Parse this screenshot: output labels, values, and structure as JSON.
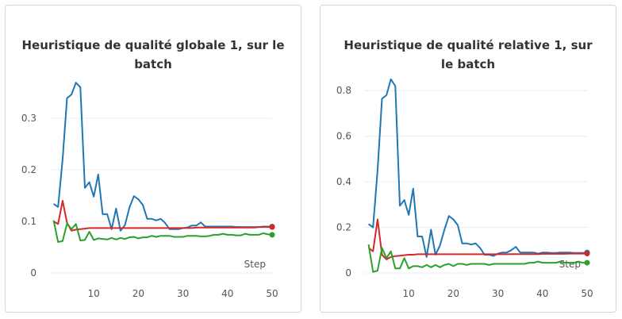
{
  "chart_data": [
    {
      "type": "line",
      "title": "Heuristique de qualité globale 1, sur le batch",
      "xlabel": "Step",
      "xlim": [
        0,
        50
      ],
      "ylim": [
        0,
        0.38
      ],
      "xticks": [
        10,
        20,
        30,
        40,
        50
      ],
      "yticks": [
        0,
        0.1,
        0.2,
        0.3
      ],
      "ytick_labels": [
        "0",
        "0.1",
        "0.2",
        "0.3"
      ],
      "grid": true,
      "series": [
        {
          "color": "#1f77b4",
          "x": [
            1,
            2,
            3,
            4,
            5,
            6,
            7,
            8,
            9,
            10,
            11,
            12,
            13,
            14,
            15,
            16,
            17,
            18,
            19,
            20,
            21,
            22,
            23,
            24,
            25,
            26,
            27,
            28,
            29,
            30,
            31,
            32,
            33,
            34,
            35,
            36,
            37,
            38,
            39,
            40,
            41,
            42,
            43,
            44,
            45,
            46,
            47,
            48,
            49,
            50
          ],
          "y": [
            0.134,
            0.128,
            0.22,
            0.339,
            0.346,
            0.369,
            0.36,
            0.165,
            0.176,
            0.148,
            0.191,
            0.114,
            0.114,
            0.085,
            0.125,
            0.082,
            0.093,
            0.127,
            0.149,
            0.143,
            0.132,
            0.105,
            0.105,
            0.102,
            0.105,
            0.097,
            0.085,
            0.085,
            0.085,
            0.087,
            0.088,
            0.092,
            0.092,
            0.098,
            0.09,
            0.09,
            0.09,
            0.09,
            0.09,
            0.09,
            0.09,
            0.089,
            0.089,
            0.089,
            0.089,
            0.089,
            0.089,
            0.09,
            0.09,
            0.09
          ]
        },
        {
          "color": "#d62728",
          "x": [
            1,
            2,
            3,
            4,
            5,
            6,
            7,
            8,
            9,
            10,
            11,
            12,
            13,
            14,
            15,
            16,
            17,
            18,
            19,
            20,
            21,
            22,
            23,
            24,
            25,
            26,
            27,
            28,
            29,
            30,
            31,
            32,
            33,
            34,
            35,
            36,
            37,
            38,
            39,
            40,
            41,
            42,
            43,
            44,
            45,
            46,
            47,
            48,
            49,
            50
          ],
          "y": [
            0.1,
            0.095,
            0.14,
            0.097,
            0.082,
            0.084,
            0.085,
            0.086,
            0.087,
            0.087,
            0.087,
            0.087,
            0.087,
            0.087,
            0.087,
            0.087,
            0.087,
            0.087,
            0.087,
            0.087,
            0.087,
            0.087,
            0.087,
            0.087,
            0.087,
            0.087,
            0.087,
            0.087,
            0.087,
            0.087,
            0.087,
            0.087,
            0.088,
            0.088,
            0.088,
            0.088,
            0.088,
            0.088,
            0.088,
            0.088,
            0.088,
            0.088,
            0.088,
            0.088,
            0.088,
            0.088,
            0.089,
            0.089,
            0.089,
            0.089
          ]
        },
        {
          "color": "#2ca02c",
          "x": [
            1,
            2,
            3,
            4,
            5,
            6,
            7,
            8,
            9,
            10,
            11,
            12,
            13,
            14,
            15,
            16,
            17,
            18,
            19,
            20,
            21,
            22,
            23,
            24,
            25,
            26,
            27,
            28,
            29,
            30,
            31,
            32,
            33,
            34,
            35,
            36,
            37,
            38,
            39,
            40,
            41,
            42,
            43,
            44,
            45,
            46,
            47,
            48,
            49,
            50
          ],
          "y": [
            0.102,
            0.06,
            0.062,
            0.096,
            0.085,
            0.095,
            0.063,
            0.064,
            0.08,
            0.064,
            0.067,
            0.066,
            0.065,
            0.068,
            0.065,
            0.068,
            0.066,
            0.069,
            0.07,
            0.067,
            0.069,
            0.069,
            0.072,
            0.07,
            0.072,
            0.072,
            0.072,
            0.07,
            0.07,
            0.07,
            0.072,
            0.072,
            0.072,
            0.071,
            0.071,
            0.072,
            0.074,
            0.074,
            0.076,
            0.074,
            0.074,
            0.073,
            0.073,
            0.076,
            0.074,
            0.074,
            0.074,
            0.077,
            0.075,
            0.074
          ]
        }
      ]
    },
    {
      "type": "line",
      "title": "Heuristique de qualité relative 1, sur le batch",
      "xlabel": "Step",
      "xlim": [
        0,
        50
      ],
      "ylim": [
        0,
        0.86
      ],
      "xticks": [
        10,
        20,
        30,
        40,
        50
      ],
      "yticks": [
        0,
        0.2,
        0.4,
        0.6,
        0.8
      ],
      "ytick_labels": [
        "0",
        "0.2",
        "0.4",
        "0.6",
        "0.8"
      ],
      "grid": true,
      "series": [
        {
          "color": "#1f77b4",
          "x": [
            1,
            2,
            3,
            4,
            5,
            6,
            7,
            8,
            9,
            10,
            11,
            12,
            13,
            14,
            15,
            16,
            17,
            18,
            19,
            20,
            21,
            22,
            23,
            24,
            25,
            26,
            27,
            28,
            29,
            30,
            31,
            32,
            33,
            34,
            35,
            36,
            37,
            38,
            39,
            40,
            41,
            42,
            43,
            44,
            45,
            46,
            47,
            48,
            49,
            50
          ],
          "y": [
            0.215,
            0.2,
            0.45,
            0.765,
            0.78,
            0.85,
            0.82,
            0.295,
            0.32,
            0.255,
            0.37,
            0.16,
            0.16,
            0.07,
            0.19,
            0.08,
            0.12,
            0.19,
            0.25,
            0.235,
            0.21,
            0.13,
            0.13,
            0.125,
            0.13,
            0.11,
            0.08,
            0.08,
            0.075,
            0.085,
            0.09,
            0.09,
            0.1,
            0.115,
            0.09,
            0.09,
            0.09,
            0.09,
            0.085,
            0.09,
            0.09,
            0.088,
            0.088,
            0.09,
            0.09,
            0.09,
            0.088,
            0.088,
            0.088,
            0.09
          ]
        },
        {
          "color": "#d62728",
          "x": [
            1,
            2,
            3,
            4,
            5,
            6,
            7,
            8,
            9,
            10,
            11,
            12,
            13,
            14,
            15,
            16,
            17,
            18,
            19,
            20,
            21,
            22,
            23,
            24,
            25,
            26,
            27,
            28,
            29,
            30,
            31,
            32,
            33,
            34,
            35,
            36,
            37,
            38,
            39,
            40,
            41,
            42,
            43,
            44,
            45,
            46,
            47,
            48,
            49,
            50
          ],
          "y": [
            0.11,
            0.095,
            0.235,
            0.08,
            0.06,
            0.07,
            0.074,
            0.076,
            0.078,
            0.08,
            0.08,
            0.082,
            0.082,
            0.082,
            0.082,
            0.082,
            0.082,
            0.082,
            0.082,
            0.082,
            0.082,
            0.082,
            0.082,
            0.082,
            0.082,
            0.082,
            0.082,
            0.082,
            0.082,
            0.082,
            0.082,
            0.082,
            0.083,
            0.083,
            0.083,
            0.083,
            0.083,
            0.083,
            0.083,
            0.084,
            0.084,
            0.084,
            0.084,
            0.084,
            0.084,
            0.085,
            0.085,
            0.085,
            0.085,
            0.085
          ]
        },
        {
          "color": "#2ca02c",
          "x": [
            1,
            2,
            3,
            4,
            5,
            6,
            7,
            8,
            9,
            10,
            11,
            12,
            13,
            14,
            15,
            16,
            17,
            18,
            19,
            20,
            21,
            22,
            23,
            24,
            25,
            26,
            27,
            28,
            29,
            30,
            31,
            32,
            33,
            34,
            35,
            36,
            37,
            38,
            39,
            40,
            41,
            42,
            43,
            44,
            45,
            46,
            47,
            48,
            49,
            50
          ],
          "y": [
            0.125,
            0.005,
            0.01,
            0.11,
            0.065,
            0.095,
            0.02,
            0.02,
            0.065,
            0.02,
            0.03,
            0.03,
            0.025,
            0.035,
            0.025,
            0.035,
            0.025,
            0.035,
            0.04,
            0.03,
            0.04,
            0.04,
            0.035,
            0.04,
            0.04,
            0.04,
            0.04,
            0.035,
            0.04,
            0.04,
            0.04,
            0.04,
            0.04,
            0.04,
            0.04,
            0.04,
            0.045,
            0.045,
            0.05,
            0.045,
            0.045,
            0.045,
            0.045,
            0.05,
            0.045,
            0.045,
            0.045,
            0.05,
            0.045,
            0.045
          ]
        }
      ]
    }
  ]
}
